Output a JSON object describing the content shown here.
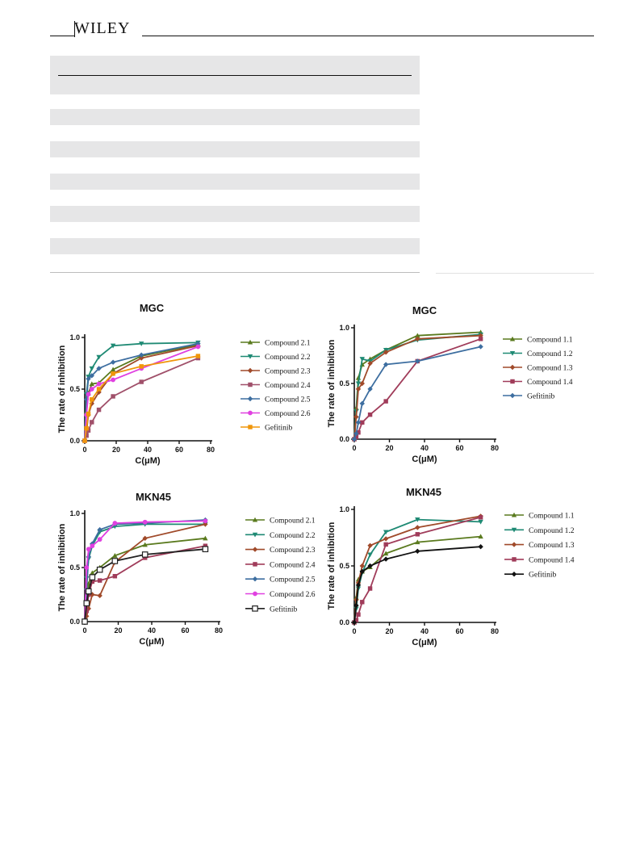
{
  "header": {
    "logo_text": "WILEY"
  },
  "table": {
    "rows": 9
  },
  "chart_data": [
    {
      "type": "line",
      "title": "MGC",
      "xlabel": "C(μM)",
      "ylabel": "The rate of inhibition",
      "xlim": [
        0,
        80
      ],
      "ylim": [
        0,
        1.0
      ],
      "xticks": [
        0,
        20,
        40,
        60,
        80
      ],
      "yticks": [
        0.0,
        0.5,
        1.0
      ],
      "legend": "right",
      "series": [
        {
          "name": "Compound 2.1",
          "color": "#5a7a1e",
          "marker": "triangle",
          "x": [
            0,
            1.1,
            2.3,
            4.5,
            9,
            18,
            36,
            72
          ],
          "y": [
            0,
            0.28,
            0.46,
            0.55,
            0.56,
            0.69,
            0.82,
            0.93
          ]
        },
        {
          "name": "Compound 2.2",
          "color": "#1f8a74",
          "marker": "triangle-down",
          "x": [
            0,
            1.1,
            2.3,
            4.5,
            9,
            18,
            36,
            72
          ],
          "y": [
            0,
            0.45,
            0.62,
            0.7,
            0.81,
            0.92,
            0.94,
            0.95
          ]
        },
        {
          "name": "Compound 2.3",
          "color": "#a04a2a",
          "marker": "diamond",
          "x": [
            0,
            1.1,
            2.3,
            4.5,
            9,
            18,
            36,
            72
          ],
          "y": [
            0,
            0.08,
            0.25,
            0.36,
            0.47,
            0.65,
            0.8,
            0.92
          ]
        },
        {
          "name": "Compound 2.4",
          "color": "#a0506a",
          "marker": "square",
          "x": [
            0,
            1.1,
            2.3,
            4.5,
            9,
            18,
            36,
            72
          ],
          "y": [
            0,
            0.05,
            0.1,
            0.18,
            0.3,
            0.43,
            0.57,
            0.8
          ]
        },
        {
          "name": "Compound 2.5",
          "color": "#3d6ea0",
          "marker": "diamond",
          "x": [
            0,
            1.1,
            2.3,
            4.5,
            9,
            18,
            36,
            72
          ],
          "y": [
            0,
            0.4,
            0.6,
            0.63,
            0.7,
            0.76,
            0.83,
            0.94
          ]
        },
        {
          "name": "Compound 2.6",
          "color": "#e040e0",
          "marker": "circle",
          "x": [
            0,
            1.1,
            2.3,
            4.5,
            9,
            18,
            36,
            72
          ],
          "y": [
            0,
            0.25,
            0.45,
            0.5,
            0.55,
            0.59,
            0.7,
            0.91
          ]
        },
        {
          "name": "Gefitinib",
          "color": "#f0960a",
          "marker": "square",
          "x": [
            0,
            1.1,
            2.3,
            4.5,
            9,
            18,
            36,
            72
          ],
          "y": [
            0,
            0.12,
            0.26,
            0.4,
            0.5,
            0.65,
            0.72,
            0.82
          ]
        }
      ]
    },
    {
      "type": "line",
      "title": "MGC",
      "xlabel": "C(μM)",
      "ylabel": "The rate of inhibition",
      "xlim": [
        0,
        80
      ],
      "ylim": [
        0,
        1.0
      ],
      "xticks": [
        0,
        20,
        40,
        60,
        80
      ],
      "yticks": [
        0.0,
        0.5,
        1.0
      ],
      "legend": "right",
      "series": [
        {
          "name": "Compound 1.1",
          "color": "#5a7a1e",
          "marker": "triangle",
          "x": [
            0,
            1.1,
            2.3,
            4.5,
            9,
            18,
            36,
            72
          ],
          "y": [
            0,
            0.28,
            0.55,
            0.67,
            0.72,
            0.8,
            0.93,
            0.96
          ]
        },
        {
          "name": "Compound 1.2",
          "color": "#1f8a74",
          "marker": "triangle-down",
          "x": [
            0,
            1.1,
            2.3,
            4.5,
            9,
            18,
            36,
            72
          ],
          "y": [
            0,
            0.25,
            0.5,
            0.72,
            0.7,
            0.8,
            0.89,
            0.94
          ]
        },
        {
          "name": "Compound 1.3",
          "color": "#a04a2a",
          "marker": "diamond",
          "x": [
            0,
            1.1,
            2.3,
            4.5,
            9,
            18,
            36,
            72
          ],
          "y": [
            0,
            0.2,
            0.45,
            0.5,
            0.68,
            0.78,
            0.9,
            0.93
          ]
        },
        {
          "name": "Compound 1.4",
          "color": "#a03c5a",
          "marker": "square",
          "x": [
            0,
            1.1,
            2.3,
            4.5,
            9,
            18,
            36,
            72
          ],
          "y": [
            0,
            0.02,
            0.06,
            0.15,
            0.22,
            0.34,
            0.7,
            0.9
          ]
        },
        {
          "name": "Gefitinib",
          "color": "#3d6ea0",
          "marker": "diamond",
          "x": [
            0,
            1.1,
            2.3,
            4.5,
            9,
            18,
            36,
            72
          ],
          "y": [
            0,
            0.05,
            0.15,
            0.32,
            0.45,
            0.67,
            0.7,
            0.83
          ]
        }
      ]
    },
    {
      "type": "line",
      "title": "MKN45",
      "xlabel": "C(μM)",
      "ylabel": "The rate of inhibition",
      "xlim": [
        0,
        80
      ],
      "ylim": [
        0,
        1.0
      ],
      "xticks": [
        0,
        20,
        40,
        60,
        80
      ],
      "yticks": [
        0.0,
        0.5,
        1.0
      ],
      "legend": "right",
      "series": [
        {
          "name": "Compound 2.1",
          "color": "#5a7a1e",
          "marker": "triangle",
          "x": [
            0,
            1.1,
            2.3,
            4.5,
            9,
            18,
            36,
            72
          ],
          "y": [
            0,
            0.2,
            0.35,
            0.45,
            0.5,
            0.61,
            0.71,
            0.77
          ]
        },
        {
          "name": "Compound 2.2",
          "color": "#1f8a74",
          "marker": "triangle-down",
          "x": [
            0,
            1.1,
            2.3,
            4.5,
            9,
            18,
            36,
            72
          ],
          "y": [
            0,
            0.4,
            0.58,
            0.7,
            0.83,
            0.88,
            0.9,
            0.9
          ]
        },
        {
          "name": "Compound 2.3",
          "color": "#a04a2a",
          "marker": "diamond",
          "x": [
            0,
            1.1,
            2.3,
            4.5,
            9,
            18,
            36,
            72
          ],
          "y": [
            0,
            0.05,
            0.12,
            0.25,
            0.24,
            0.55,
            0.77,
            0.9
          ]
        },
        {
          "name": "Compound 2.4",
          "color": "#a03c5a",
          "marker": "square",
          "x": [
            0,
            1.1,
            2.3,
            4.5,
            9,
            18,
            36,
            72
          ],
          "y": [
            0,
            0.1,
            0.25,
            0.37,
            0.38,
            0.42,
            0.59,
            0.7
          ]
        },
        {
          "name": "Compound 2.5",
          "color": "#3d6ea0",
          "marker": "diamond",
          "x": [
            0,
            1.1,
            2.3,
            4.5,
            9,
            18,
            36,
            72
          ],
          "y": [
            0,
            0.3,
            0.6,
            0.72,
            0.85,
            0.9,
            0.91,
            0.94
          ]
        },
        {
          "name": "Compound 2.6",
          "color": "#e040e0",
          "marker": "circle",
          "x": [
            0,
            1.1,
            2.3,
            4.5,
            9,
            18,
            36,
            72
          ],
          "y": [
            0,
            0.5,
            0.67,
            0.7,
            0.76,
            0.91,
            0.92,
            0.93
          ]
        },
        {
          "name": "Gefitinib",
          "color": "#222222",
          "marker": "square-open",
          "x": [
            0,
            1.1,
            2.3,
            4.5,
            9,
            18,
            36,
            72
          ],
          "y": [
            0,
            0.17,
            0.28,
            0.41,
            0.48,
            0.56,
            0.62,
            0.67
          ]
        }
      ]
    },
    {
      "type": "line",
      "title": "MKN45",
      "xlabel": "C(μM)",
      "ylabel": "The rate of inhibition",
      "xlim": [
        0,
        80
      ],
      "ylim": [
        0,
        1.0
      ],
      "xticks": [
        0,
        20,
        40,
        60,
        80
      ],
      "yticks": [
        0.0,
        0.5,
        1.0
      ],
      "legend": "right",
      "series": [
        {
          "name": "Compound 1.1",
          "color": "#5a7a1e",
          "marker": "triangle",
          "x": [
            0,
            1.1,
            2.3,
            4.5,
            9,
            18,
            36,
            72
          ],
          "y": [
            0,
            0.22,
            0.38,
            0.45,
            0.49,
            0.61,
            0.71,
            0.76
          ]
        },
        {
          "name": "Compound 1.2",
          "color": "#1f8a74",
          "marker": "triangle-down",
          "x": [
            0,
            1.1,
            2.3,
            4.5,
            9,
            18,
            36,
            72
          ],
          "y": [
            0,
            0.12,
            0.3,
            0.44,
            0.6,
            0.8,
            0.91,
            0.89
          ]
        },
        {
          "name": "Compound 1.3",
          "color": "#a04a2a",
          "marker": "diamond",
          "x": [
            0,
            1.1,
            2.3,
            4.5,
            9,
            18,
            36,
            72
          ],
          "y": [
            0,
            0.2,
            0.35,
            0.5,
            0.68,
            0.74,
            0.84,
            0.94
          ]
        },
        {
          "name": "Compound 1.4",
          "color": "#a03c5a",
          "marker": "square",
          "x": [
            0,
            1.1,
            2.3,
            4.5,
            9,
            18,
            36,
            72
          ],
          "y": [
            0,
            0.02,
            0.07,
            0.18,
            0.3,
            0.69,
            0.78,
            0.93
          ]
        },
        {
          "name": "Gefitinib",
          "color": "#111111",
          "marker": "diamond-filled",
          "x": [
            0,
            1.1,
            2.3,
            4.5,
            9,
            18,
            36,
            72
          ],
          "y": [
            0,
            0.15,
            0.33,
            0.45,
            0.5,
            0.56,
            0.63,
            0.67
          ]
        }
      ]
    }
  ]
}
